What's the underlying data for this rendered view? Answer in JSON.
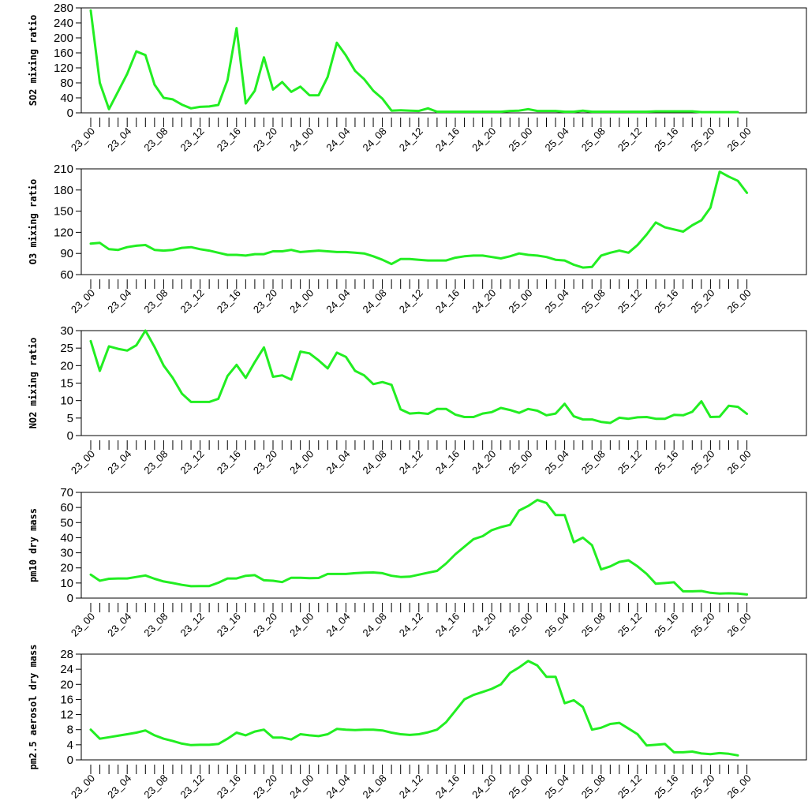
{
  "chart_data": [
    {
      "type": "line",
      "ylabel": "SO2 mixing ratio",
      "ylim": [
        0,
        280
      ],
      "yticks": [
        0,
        40,
        80,
        120,
        160,
        200,
        240,
        280
      ],
      "x_tick_labels": [
        "23_00",
        "23_04",
        "23_08",
        "23_12",
        "23_16",
        "23_20",
        "24_00",
        "24_04",
        "24_08",
        "24_12",
        "24_16",
        "24_20",
        "25_00",
        "25_04",
        "25_08",
        "25_12",
        "25_16",
        "25_20",
        "26_00"
      ],
      "color": "#22ee22",
      "values": [
        273,
        80,
        10,
        57,
        104,
        164,
        154,
        75,
        40,
        36,
        22,
        12,
        16,
        17,
        21,
        87,
        226,
        25,
        59,
        148,
        62,
        82,
        56,
        70,
        47,
        47,
        96,
        187,
        153,
        112,
        90,
        59,
        38,
        6,
        7,
        6,
        5,
        12,
        3,
        3,
        3,
        3,
        3,
        3,
        3,
        3,
        5,
        6,
        10,
        5,
        5,
        5,
        3,
        3,
        6,
        3,
        3,
        3,
        3,
        3,
        3,
        3,
        4,
        4,
        4,
        4,
        4,
        2,
        2,
        2,
        2,
        2
      ]
    },
    {
      "type": "line",
      "ylabel": "O3 mixing ratio",
      "ylim": [
        60,
        210
      ],
      "yticks": [
        60,
        90,
        120,
        150,
        180,
        210
      ],
      "x_tick_labels": [
        "23_00",
        "23_04",
        "23_08",
        "23_12",
        "23_16",
        "23_20",
        "24_00",
        "24_04",
        "24_08",
        "24_12",
        "24_16",
        "24_20",
        "25_00",
        "25_04",
        "25_08",
        "25_12",
        "25_16",
        "25_20",
        "26_00"
      ],
      "color": "#22ee22",
      "values": [
        104,
        105,
        96,
        95,
        99,
        101,
        102,
        95,
        94,
        95,
        98,
        99,
        96,
        94,
        91,
        88,
        88,
        87,
        89,
        89,
        93,
        93,
        95,
        92,
        93,
        94,
        93,
        92,
        92,
        91,
        90,
        86,
        81,
        75,
        82,
        82,
        81,
        80,
        80,
        80,
        84,
        86,
        87,
        87,
        85,
        83,
        86,
        90,
        88,
        87,
        85,
        81,
        80,
        74,
        70,
        71,
        87,
        91,
        94,
        91,
        102,
        117,
        134,
        127,
        124,
        121,
        130,
        137,
        155,
        206,
        199,
        193,
        176
      ]
    },
    {
      "type": "line",
      "ylabel": "NO2 mixing ratio",
      "ylim": [
        0,
        30
      ],
      "yticks": [
        0,
        5,
        10,
        15,
        20,
        25,
        30
      ],
      "x_tick_labels": [
        "23_00",
        "23_04",
        "23_08",
        "23_12",
        "23_16",
        "23_20",
        "24_00",
        "24_04",
        "24_08",
        "24_12",
        "24_16",
        "24_20",
        "25_00",
        "25_04",
        "25_08",
        "25_12",
        "25_16",
        "25_20",
        "26_00"
      ],
      "color": "#22ee22",
      "values": [
        27,
        18.5,
        25.5,
        24.8,
        24.3,
        25.8,
        30,
        25.3,
        20,
        16.5,
        12,
        9.6,
        9.6,
        9.6,
        10.5,
        17,
        20.2,
        16.5,
        21,
        25.2,
        16.8,
        17.2,
        16,
        24,
        23.5,
        21.5,
        19.2,
        23.7,
        22.5,
        18.5,
        17.2,
        14.7,
        15.3,
        14.5,
        7.5,
        6.3,
        6.5,
        6.2,
        7.6,
        7.6,
        6,
        5.3,
        5.3,
        6.3,
        6.7,
        7.9,
        7.3,
        6.5,
        7.6,
        7.1,
        5.8,
        6.3,
        9.1,
        5.5,
        4.6,
        4.6,
        3.9,
        3.6,
        5.1,
        4.8,
        5.2,
        5.3,
        4.8,
        4.8,
        5.9,
        5.8,
        6.8,
        9.8,
        5.3,
        5.4,
        8.5,
        8.2,
        6.2
      ]
    },
    {
      "type": "line",
      "ylabel": "pm10 dry mass",
      "ylim": [
        0,
        70
      ],
      "yticks": [
        0,
        10,
        20,
        30,
        40,
        50,
        60,
        70
      ],
      "x_tick_labels": [
        "23_00",
        "23_04",
        "23_08",
        "23_12",
        "23_16",
        "23_20",
        "24_00",
        "24_04",
        "24_08",
        "24_12",
        "24_16",
        "24_20",
        "25_00",
        "25_04",
        "25_08",
        "25_12",
        "25_16",
        "25_20",
        "26_00"
      ],
      "color": "#22ee22",
      "values": [
        15.5,
        11.5,
        12.8,
        13,
        13,
        14,
        15,
        12.8,
        11,
        10,
        8.8,
        7.9,
        8,
        8,
        10.2,
        13,
        13,
        14.8,
        15.2,
        11.8,
        11.5,
        10.6,
        13.5,
        13.5,
        13.2,
        13.3,
        16,
        16,
        16,
        16.5,
        16.8,
        17,
        16.5,
        14.8,
        14,
        14.2,
        15.5,
        16.8,
        18,
        23,
        29,
        34,
        39,
        41,
        45,
        47,
        48.5,
        58,
        61,
        65,
        63,
        55,
        55,
        37,
        40,
        35,
        19,
        21,
        24,
        25,
        21,
        16,
        9.5,
        10,
        10.5,
        4.5,
        4.5,
        4.7,
        3.5,
        3,
        3.2,
        3,
        2.4
      ]
    },
    {
      "type": "line",
      "ylabel": "pm2.5 aerosol dry mass",
      "ylim": [
        0,
        28
      ],
      "yticks": [
        0,
        4,
        8,
        12,
        16,
        20,
        24,
        28
      ],
      "x_tick_labels": [
        "23_00",
        "23_04",
        "23_08",
        "23_12",
        "23_16",
        "23_20",
        "24_00",
        "24_04",
        "24_08",
        "24_12",
        "24_16",
        "24_20",
        "25_00",
        "25_04",
        "25_08",
        "25_12",
        "25_16",
        "25_20",
        "26_00"
      ],
      "color": "#22ee22",
      "values": [
        8,
        5.6,
        6,
        6.4,
        6.8,
        7.2,
        7.8,
        6.5,
        5.6,
        5,
        4.3,
        3.9,
        4,
        4,
        4.2,
        5.6,
        7.2,
        6.5,
        7.5,
        8,
        5.9,
        5.9,
        5.4,
        6.8,
        6.5,
        6.3,
        6.8,
        8.2,
        8,
        7.9,
        8,
        8,
        7.8,
        7.2,
        6.8,
        6.6,
        6.8,
        7.3,
        8,
        10,
        13,
        16,
        17.2,
        18,
        18.8,
        20,
        23,
        24.5,
        26.2,
        25,
        22,
        22,
        15,
        15.8,
        14,
        8,
        8.5,
        9.5,
        9.8,
        8.3,
        6.8,
        3.8,
        4,
        4.2,
        2,
        2,
        2.2,
        1.7,
        1.5,
        1.8,
        1.6,
        1.2
      ]
    }
  ]
}
